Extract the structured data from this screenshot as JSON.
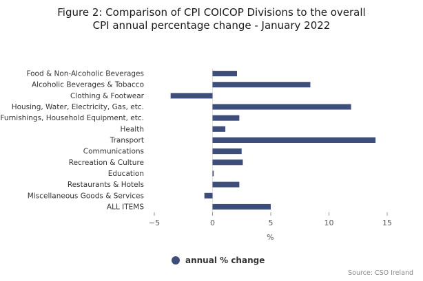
{
  "title_line1": "Figure 2: Comparison of CPI COICOP Divisions to the overall",
  "title_line2": "CPI annual percentage change - January 2022",
  "source": "Source: CSO Ireland",
  "legend_label": "annual % change",
  "bar_color": "#3d4e7a",
  "chart_data": {
    "type": "bar",
    "orientation": "horizontal",
    "title": "Figure 2: Comparison of CPI COICOP Divisions to the overall CPI annual percentage change - January 2022",
    "xlabel": "%",
    "ylabel": "",
    "xlim": [
      -5,
      15
    ],
    "xticks": [
      -5,
      0,
      5,
      10,
      15
    ],
    "grid": false,
    "legend": "bottom-center",
    "categories": [
      "Food & Non-Alcoholic Beverages",
      "Alcoholic Beverages & Tobacco",
      "Clothing & Footwear",
      "Housing, Water, Electricity, Gas, etc.",
      "Furnishings, Household Equipment, etc.",
      "Health",
      "Transport",
      "Communications",
      "Recreation & Culture",
      "Education",
      "Restaurants & Hotels",
      "Miscellaneous Goods & Services",
      "ALL ITEMS"
    ],
    "series": [
      {
        "name": "annual % change",
        "values": [
          2.1,
          8.4,
          -3.6,
          11.9,
          2.3,
          1.1,
          14.0,
          2.5,
          2.6,
          0.1,
          2.3,
          -0.7,
          5.0
        ]
      }
    ]
  }
}
